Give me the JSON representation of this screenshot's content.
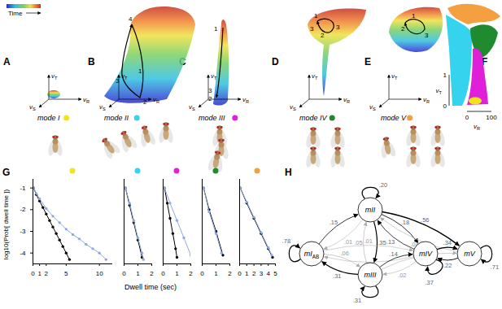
{
  "figure": {
    "time_label": "Time",
    "panel_labels": [
      "A",
      "B",
      "C",
      "D",
      "E",
      "F",
      "G",
      "H"
    ],
    "axis_labels": [
      {
        "text": "v",
        "sub": "T"
      },
      {
        "text": "v",
        "sub": "S"
      },
      {
        "text": "v",
        "sub": "R"
      }
    ],
    "modes": [
      {
        "name": "mode I",
        "color": "#f2e41c",
        "path_labels": []
      },
      {
        "name": "mode II",
        "color": "#35d3ee",
        "path_labels": [
          "1",
          "2",
          "3",
          "4"
        ]
      },
      {
        "name": "mode III",
        "color": "#e020d8",
        "path_labels": [
          "1",
          "2",
          "3"
        ]
      },
      {
        "name": "mode IV",
        "color": "#1f8a2e",
        "path_labels": [
          "1",
          "3",
          "2",
          "3"
        ]
      },
      {
        "name": "mode V",
        "color": "#f5a040",
        "path_labels": [
          "1",
          "2",
          "3"
        ]
      }
    ],
    "mode_map": {
      "xlim": [
        0,
        100
      ],
      "xticks": [
        0,
        100
      ],
      "ylim": [
        0,
        1
      ],
      "yticks": [
        0,
        1
      ]
    }
  },
  "dwell_time": {
    "y_label": "log10(Prob[ dwell time ])",
    "x_label": "Dwell time (sec)"
  },
  "chart_data": [
    {
      "type": "line",
      "log": "y",
      "tick_labels": true,
      "xlim": [
        0,
        12
      ],
      "xticks": [
        0,
        1,
        2,
        5,
        10
      ],
      "ylim": [
        -4.5,
        -0.6
      ],
      "yticks": [
        -1,
        -2,
        -3,
        -4
      ],
      "series": [
        {
          "color": "#000000",
          "marker": "dot",
          "x": [
            0.1,
            0.5,
            1,
            1.5,
            2,
            2.5,
            3,
            3.5,
            4,
            4.5,
            5,
            5.5
          ],
          "values": [
            -1.0,
            -1.3,
            -1.6,
            -1.9,
            -2.2,
            -2.5,
            -2.8,
            -3.1,
            -3.4,
            -3.7,
            -4.0,
            -4.3
          ]
        },
        {
          "color": "#8fa8e0",
          "marker": "dot",
          "x": [
            0.1,
            0.5,
            1,
            2,
            3,
            4,
            5,
            6,
            7,
            8,
            9,
            10,
            11
          ],
          "values": [
            -1.0,
            -1.25,
            -1.5,
            -1.95,
            -2.3,
            -2.6,
            -2.9,
            -3.15,
            -3.35,
            -3.6,
            -3.8,
            -4.0,
            -4.3
          ]
        }
      ]
    },
    {
      "type": "line",
      "log": "y",
      "tick_labels": "x",
      "xlim": [
        0,
        2
      ],
      "xticks": [
        0,
        1,
        2
      ],
      "ylim": [
        -4.5,
        -0.6
      ],
      "series": [
        {
          "color": "#000000",
          "marker": "dot",
          "x": [
            0.1,
            0.4,
            0.7,
            1.0,
            1.3
          ],
          "values": [
            -1.0,
            -1.8,
            -2.6,
            -3.4,
            -4.2
          ]
        },
        {
          "color": "#8fa8e0",
          "marker": "dot",
          "x": [
            0.1,
            0.4,
            0.7,
            1.0,
            1.3,
            1.4
          ],
          "values": [
            -1.0,
            -1.7,
            -2.5,
            -3.3,
            -4.0,
            -4.3
          ]
        }
      ]
    },
    {
      "type": "line",
      "log": "y",
      "tick_labels": "x",
      "xlim": [
        0,
        2
      ],
      "xticks": [
        0,
        1,
        2
      ],
      "ylim": [
        -4.5,
        -0.6
      ],
      "series": [
        {
          "color": "#000000",
          "marker": "dot",
          "x": [
            0.1,
            0.3,
            0.5,
            0.7,
            0.9,
            1.0
          ],
          "values": [
            -1.0,
            -1.7,
            -2.4,
            -3.1,
            -3.8,
            -4.2
          ]
        },
        {
          "color": "#8fa8e0",
          "marker": "dot",
          "x": [
            0.1,
            0.5,
            1,
            1.5,
            2
          ],
          "values": [
            -1.0,
            -1.7,
            -2.5,
            -3.3,
            -4.1
          ]
        }
      ]
    },
    {
      "type": "line",
      "log": "y",
      "tick_labels": "x",
      "xlim": [
        0,
        2
      ],
      "xticks": [
        0,
        1,
        2
      ],
      "ylim": [
        -4.5,
        -0.6
      ],
      "series": [
        {
          "color": "#000000",
          "marker": "dot",
          "x": [
            0.1,
            0.5,
            1,
            1.5
          ],
          "values": [
            -1.0,
            -2.0,
            -3.0,
            -4.1
          ]
        },
        {
          "color": "#8fa8e0",
          "marker": "dot",
          "x": [
            0.1,
            0.5,
            1,
            1.4
          ],
          "values": [
            -1.0,
            -2.1,
            -3.1,
            -4.0
          ]
        }
      ]
    },
    {
      "type": "line",
      "log": "y",
      "tick_labels": "x",
      "xlim": [
        0,
        5
      ],
      "xticks": [
        0,
        1,
        2,
        3,
        4,
        5
      ],
      "ylim": [
        -4.5,
        -0.6
      ],
      "series": [
        {
          "color": "#000000",
          "marker": "dot",
          "x": [
            0.1,
            1,
            2,
            3,
            4,
            4.6
          ],
          "values": [
            -1.0,
            -1.7,
            -2.4,
            -3.1,
            -3.8,
            -4.2
          ]
        },
        {
          "color": "#8fa8e0",
          "marker": "dot",
          "x": [
            0.1,
            1,
            2,
            3,
            4,
            4.5
          ],
          "values": [
            -1.0,
            -1.65,
            -2.35,
            -3.05,
            -3.75,
            -4.1
          ]
        }
      ]
    }
  ],
  "diagram": {
    "nodes": [
      {
        "label": "mI",
        "sub": "AB",
        "self": ".78"
      },
      {
        "label": "mII",
        "self": ".20"
      },
      {
        "label": "mIII",
        "self": ".31"
      },
      {
        "label": "mIV",
        "self": ".37"
      },
      {
        "label": "mV",
        "self": ".71"
      }
    ],
    "edges": [
      {
        "from": 0,
        "to": 1,
        "label": ".15"
      },
      {
        "from": 1,
        "to": 0,
        "label": ".01"
      },
      {
        "from": 0,
        "to": 2,
        "label": ".06"
      },
      {
        "from": 2,
        "to": 0,
        "label": ".31"
      },
      {
        "from": 1,
        "to": 2,
        "label": ".35"
      },
      {
        "from": 2,
        "to": 1,
        "label": ".05"
      },
      {
        "from": 1,
        "to": 3,
        "label": ".18"
      },
      {
        "from": 3,
        "to": 1,
        "label": ".13"
      },
      {
        "from": 1,
        "to": 4,
        "label": ".56"
      },
      {
        "from": 4,
        "to": 1,
        "label": ".04"
      },
      {
        "from": 3,
        "to": 4,
        "label": ".34"
      },
      {
        "from": 4,
        "to": 3,
        "label": ".22"
      },
      {
        "from": 0,
        "to": 3,
        "label": ".01"
      },
      {
        "from": 3,
        "to": 0,
        "label": ".02"
      },
      {
        "from": 2,
        "to": 3,
        "label": ".14"
      },
      {
        "from": 3,
        "to": 2,
        "label": ".02"
      },
      {
        "from": 2,
        "to": 4,
        "label": ".03"
      }
    ]
  }
}
